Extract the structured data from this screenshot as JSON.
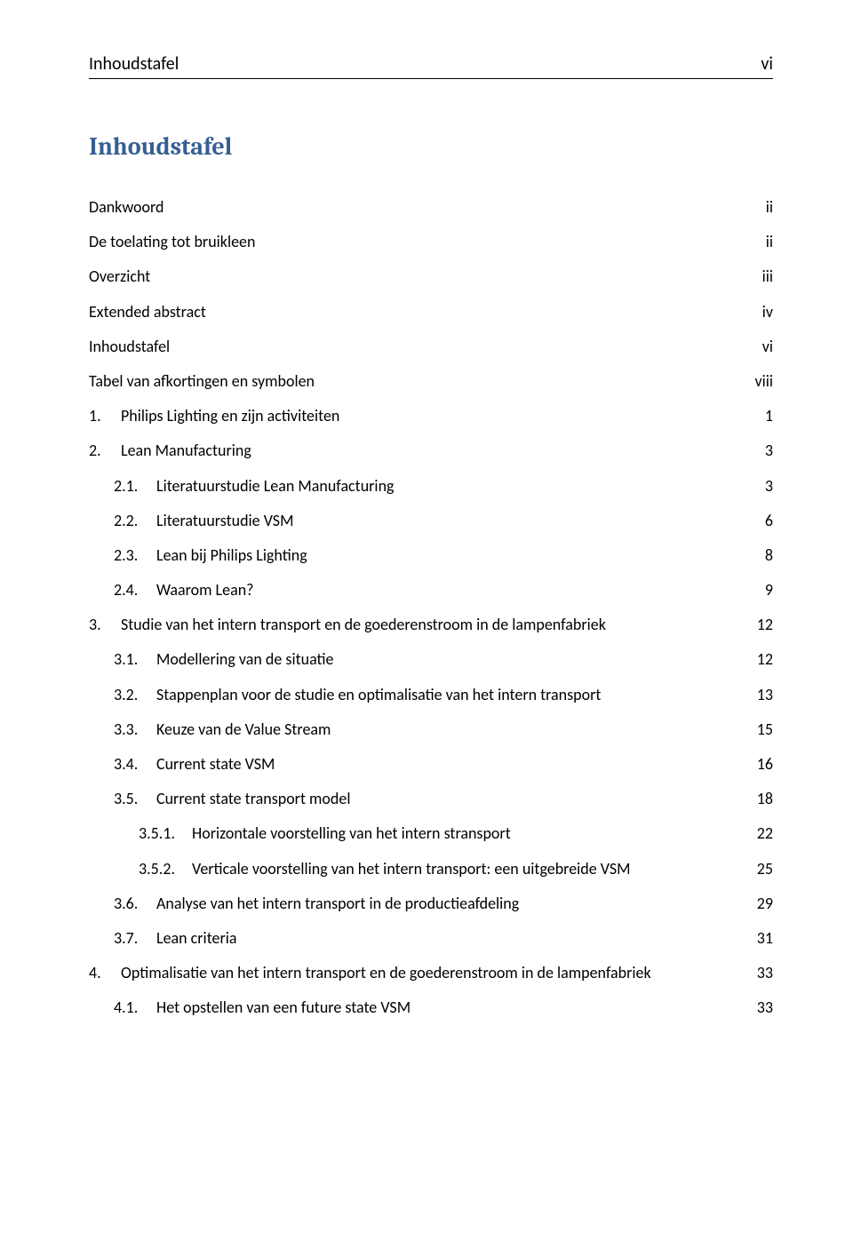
{
  "header": {
    "left": "Inhoudstafel",
    "right": "vi"
  },
  "title": "Inhoudstafel",
  "colors": {
    "heading": "#365f91",
    "text": "#000000",
    "background": "#ffffff"
  },
  "typography": {
    "body_fontsize_pt": 11,
    "heading_fontsize_pt": 16,
    "heading_family": "Cambria",
    "body_family": "Calibri"
  },
  "toc": [
    {
      "level": 1,
      "num": "",
      "title": "Dankwoord",
      "page": "ii"
    },
    {
      "level": 1,
      "num": "",
      "title": "De toelating tot bruikleen",
      "page": "ii"
    },
    {
      "level": 1,
      "num": "",
      "title": "Overzicht",
      "page": "iii"
    },
    {
      "level": 1,
      "num": "",
      "title": "Extended abstract",
      "page": "iv"
    },
    {
      "level": 1,
      "num": "",
      "title": "Inhoudstafel",
      "page": "vi"
    },
    {
      "level": 1,
      "num": "",
      "title": "Tabel van afkortingen en symbolen",
      "page": "viii"
    },
    {
      "level": 1,
      "num": "1.",
      "title": "Philips Lighting en zijn activiteiten",
      "page": "1"
    },
    {
      "level": 1,
      "num": "2.",
      "title": "Lean Manufacturing",
      "page": "3"
    },
    {
      "level": 2,
      "num": "2.1.",
      "title": "Literatuurstudie Lean Manufacturing",
      "page": "3"
    },
    {
      "level": 2,
      "num": "2.2.",
      "title": "Literatuurstudie VSM",
      "page": "6"
    },
    {
      "level": 2,
      "num": "2.3.",
      "title": "Lean bij Philips Lighting",
      "page": "8"
    },
    {
      "level": 2,
      "num": "2.4.",
      "title": "Waarom Lean?",
      "page": "9"
    },
    {
      "level": 1,
      "num": "3.",
      "title": "Studie van het intern transport en de goederenstroom in de lampenfabriek",
      "page": "12"
    },
    {
      "level": 2,
      "num": "3.1.",
      "title": "Modellering van de situatie",
      "page": "12"
    },
    {
      "level": 2,
      "num": "3.2.",
      "title": "Stappenplan voor de studie en optimalisatie van het intern transport",
      "page": "13"
    },
    {
      "level": 2,
      "num": "3.3.",
      "title": "Keuze van de Value Stream",
      "page": "15"
    },
    {
      "level": 2,
      "num": "3.4.",
      "title": "Current state VSM",
      "page": "16"
    },
    {
      "level": 2,
      "num": "3.5.",
      "title": "Current state transport model",
      "page": "18"
    },
    {
      "level": 3,
      "num": "3.5.1.",
      "title": "Horizontale voorstelling van het intern stransport",
      "page": "22"
    },
    {
      "level": 3,
      "num": "3.5.2.",
      "title": "Verticale voorstelling van het intern transport: een uitgebreide VSM",
      "page": "25"
    },
    {
      "level": 2,
      "num": "3.6.",
      "title": "Analyse van het intern transport in de productieafdeling",
      "page": "29"
    },
    {
      "level": 2,
      "num": "3.7.",
      "title": "Lean criteria",
      "page": "31"
    },
    {
      "level": 1,
      "num": "4.",
      "title": "Optimalisatie van het intern transport en de goederenstroom in de lampenfabriek",
      "page": "33"
    },
    {
      "level": 2,
      "num": "4.1.",
      "title": "Het opstellen van een future state VSM",
      "page": "33"
    }
  ]
}
